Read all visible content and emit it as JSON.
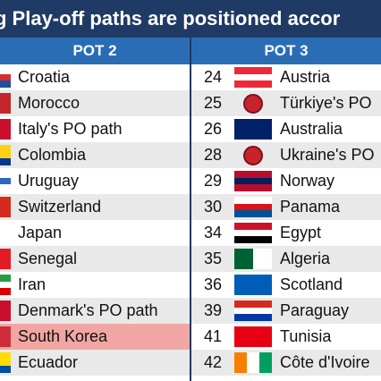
{
  "banner": {
    "text": "g Play-off paths are positioned accor"
  },
  "pot2": {
    "header": "POT 2",
    "rows": [
      {
        "name": "Croatia",
        "flag": [
          "#ffffff",
          "#d32f2f",
          "#1e4fa3"
        ],
        "dir": "h"
      },
      {
        "name": "Morocco",
        "flag": [
          "#c1272d",
          "#c1272d",
          "#c1272d"
        ],
        "dir": "h"
      },
      {
        "name": "Italy's PO path",
        "flag": [
          "#c8102e",
          "#c8102e",
          "#c8102e"
        ],
        "dir": "h"
      },
      {
        "name": "Colombia",
        "flag": [
          "#fcd116",
          "#fcd116",
          "#003893"
        ],
        "dir": "h"
      },
      {
        "name": "Uruguay",
        "flag": [
          "#ffffff",
          "#2e66c3",
          "#ffffff"
        ],
        "dir": "h"
      },
      {
        "name": "Switzerland",
        "flag": [
          "#d52b1e",
          "#d52b1e",
          "#d52b1e"
        ],
        "dir": "h"
      },
      {
        "name": "Japan",
        "flag": [
          "#ffffff",
          "#ffffff",
          "#ffffff"
        ],
        "dir": "h"
      },
      {
        "name": "Senegal",
        "flag": [
          "#e31b23",
          "#e31b23",
          "#e31b23"
        ],
        "dir": "h"
      },
      {
        "name": "Iran",
        "flag": [
          "#239f40",
          "#ffffff",
          "#da0000"
        ],
        "dir": "h"
      },
      {
        "name": "Denmark's PO path",
        "flag": [
          "#c8102e",
          "#c8102e",
          "#c8102e"
        ],
        "dir": "h"
      },
      {
        "name": "South Korea",
        "flag": [
          "#cd2e3a",
          "#cd2e3a",
          "#cd2e3a"
        ],
        "dir": "h"
      },
      {
        "name": "Ecuador",
        "flag": [
          "#ffdd00",
          "#ffdd00",
          "#034ea2"
        ],
        "dir": "h"
      }
    ]
  },
  "pot3": {
    "header": "POT 3",
    "rows": [
      {
        "rank": "24",
        "name": "Austria",
        "flag": [
          "#ed2939",
          "#ffffff",
          "#ed2939"
        ],
        "dir": "h"
      },
      {
        "rank": "25",
        "name": "Türkiye's PO",
        "flag": "uefa"
      },
      {
        "rank": "26",
        "name": "Australia",
        "flag": [
          "#012169",
          "#012169",
          "#012169"
        ],
        "dir": "h"
      },
      {
        "rank": "28",
        "name": "Ukraine's PO",
        "flag": "uefa"
      },
      {
        "rank": "29",
        "name": "Norway",
        "flag": [
          "#ba0c2f",
          "#00205b",
          "#ba0c2f"
        ],
        "dir": "h"
      },
      {
        "rank": "30",
        "name": "Panama",
        "flag": [
          "#ffffff",
          "#da121a",
          "#005293"
        ],
        "dir": "h"
      },
      {
        "rank": "34",
        "name": "Egypt",
        "flag": [
          "#ce1126",
          "#ffffff",
          "#000000"
        ],
        "dir": "h"
      },
      {
        "rank": "35",
        "name": "Algeria",
        "flag": [
          "#006233",
          "#ffffff"
        ],
        "dir": "v"
      },
      {
        "rank": "36",
        "name": "Scotland",
        "flag": [
          "#005eb8",
          "#005eb8",
          "#005eb8"
        ],
        "dir": "h"
      },
      {
        "rank": "39",
        "name": "Paraguay",
        "flag": [
          "#d52b1e",
          "#ffffff",
          "#0038a8"
        ],
        "dir": "h"
      },
      {
        "rank": "41",
        "name": "Tunisia",
        "flag": [
          "#e70013",
          "#e70013",
          "#e70013"
        ],
        "dir": "h"
      },
      {
        "rank": "42",
        "name": "Côte d'Ivoire",
        "flag": [
          "#f77f00",
          "#ffffff",
          "#009e60"
        ],
        "dir": "v"
      }
    ]
  }
}
